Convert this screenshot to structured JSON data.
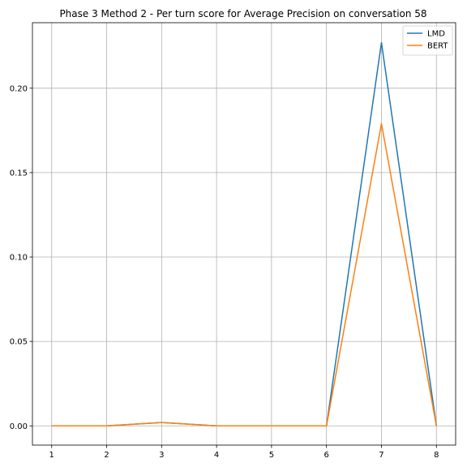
{
  "chart_data": {
    "type": "line",
    "title": "Phase 3 Method 2 - Per turn score for Average Precision on conversation 58",
    "xlabel": "",
    "ylabel": "",
    "x": [
      1,
      2,
      3,
      4,
      5,
      6,
      7,
      8
    ],
    "x_tick_labels": [
      "1",
      "2",
      "3",
      "4",
      "5",
      "6",
      "7",
      "8"
    ],
    "y_ticks": [
      0.0,
      0.05,
      0.1,
      0.15,
      0.2
    ],
    "y_tick_labels": [
      "0.00",
      "0.05",
      "0.10",
      "0.15",
      "0.20"
    ],
    "xlim": [
      0.65,
      8.35
    ],
    "ylim": [
      -0.0114,
      0.2388
    ],
    "grid": true,
    "legend_position": "top-right",
    "series": [
      {
        "name": "LMD",
        "color": "#1f77b4",
        "values": [
          0,
          0,
          0.002,
          0,
          0,
          0,
          0.227,
          0
        ]
      },
      {
        "name": "BERT",
        "color": "#ff7f0e",
        "values": [
          0,
          0,
          0.002,
          0,
          0,
          0,
          0.179,
          0
        ]
      }
    ]
  }
}
